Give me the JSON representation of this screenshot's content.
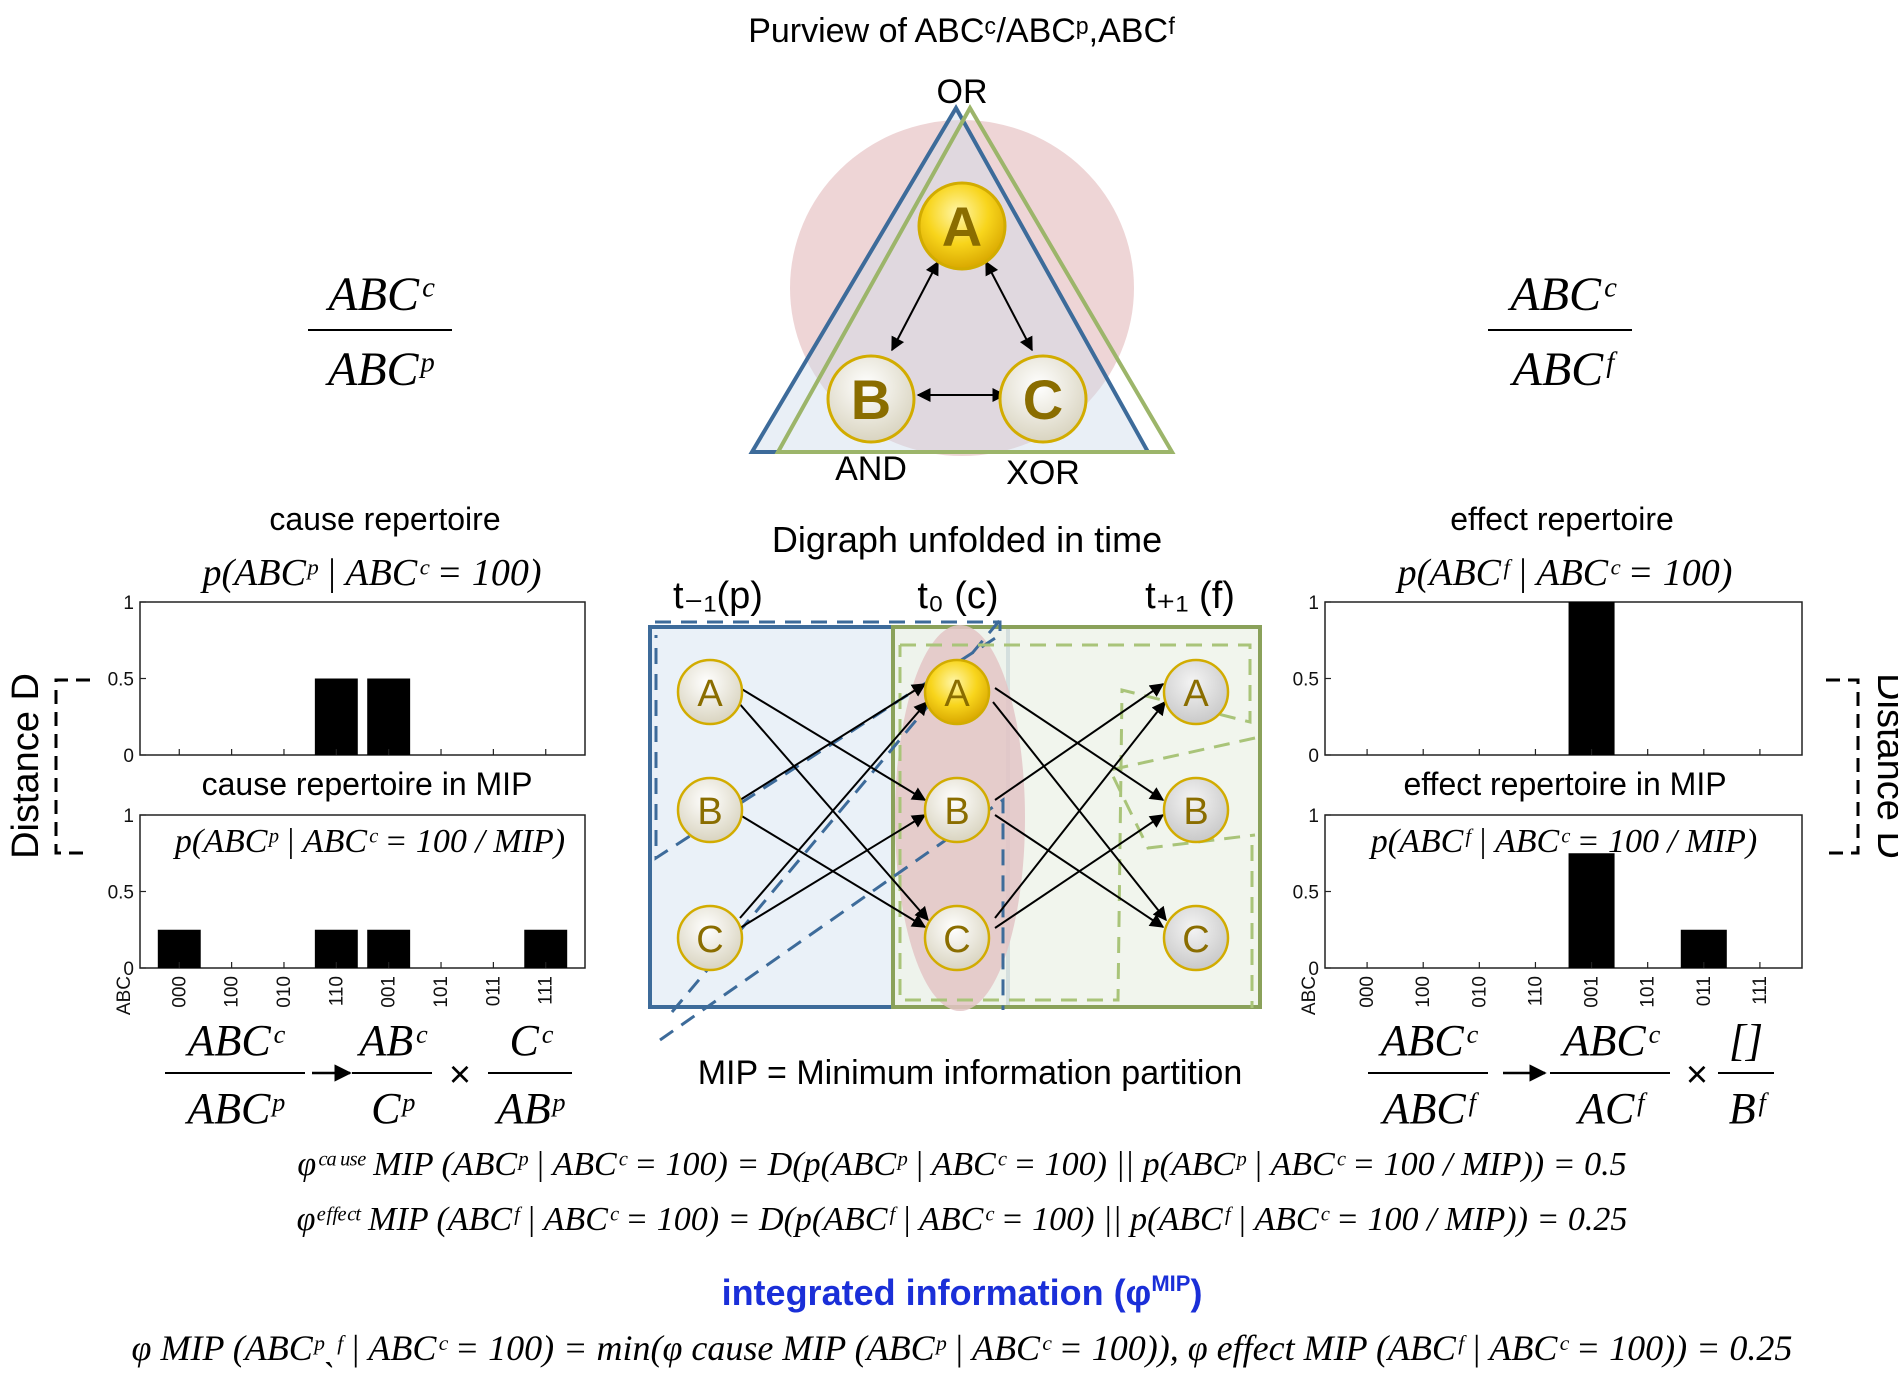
{
  "title": "Purview of ABCᶜ/ABCᵖ,ABCᶠ",
  "triangle": {
    "nodes": [
      {
        "label": "A",
        "gate": "OR"
      },
      {
        "label": "B",
        "gate": "AND"
      },
      {
        "label": "C",
        "gate": "XOR"
      }
    ],
    "colors": {
      "blue": "#3d6b9a",
      "green": "#9cb56a",
      "pink": "#eccfd0",
      "node_a": "#f6d21a",
      "node_other": "#f4f1e4"
    }
  },
  "left": {
    "ratio_top": "ABCᶜ",
    "ratio_bottom": "ABCᵖ",
    "repertoire_title": "cause repertoire",
    "repertoire_formula": "p(ABCᵖ | ABCᶜ = 100)",
    "mip_title": "cause repertoire in MIP",
    "mip_formula": "p(ABCᵖ | ABCᶜ = 100 / MIP)",
    "distance_label": "Distance D",
    "partition": {
      "whole_top": "ABCᶜ",
      "whole_bottom": "ABCᵖ",
      "part1_top": "ABᶜ",
      "part1_bottom": "Cᵖ",
      "part2_top": "Cᶜ",
      "part2_bottom": "ABᵖ"
    }
  },
  "right": {
    "ratio_top": "ABCᶜ",
    "ratio_bottom": "ABCᶠ",
    "repertoire_title": "effect repertoire",
    "repertoire_formula": "p(ABCᶠ | ABCᶜ = 100)",
    "mip_title": "effect repertoire in MIP",
    "mip_formula": "p(ABCᶠ | ABCᶜ = 100 / MIP)",
    "distance_label": "Distance D",
    "partition": {
      "whole_top": "ABCᶜ",
      "whole_bottom": "ABCᶠ",
      "part1_top": "ABCᶜ",
      "part1_bottom": "ACᶠ",
      "part2_top": "[]",
      "part2_bottom": "Bᶠ"
    }
  },
  "center": {
    "title": "Digraph unfolded in time",
    "columns": [
      "t₋₁(p)",
      "t₀ (c)",
      "t₊₁ (f)"
    ],
    "mip_caption": "MIP = Minimum information partition"
  },
  "chart_data": [
    {
      "type": "bar",
      "title": "cause repertoire",
      "categories": [
        "000",
        "100",
        "010",
        "110",
        "001",
        "101",
        "011",
        "111"
      ],
      "values": [
        0,
        0,
        0,
        0.5,
        0.5,
        0,
        0,
        0
      ],
      "xlabel": "ABC",
      "ylim": [
        0,
        1
      ],
      "yticks": [
        "0",
        "0.5",
        "1"
      ]
    },
    {
      "type": "bar",
      "title": "cause repertoire in MIP",
      "categories": [
        "000",
        "100",
        "010",
        "110",
        "001",
        "101",
        "011",
        "111"
      ],
      "values": [
        0.25,
        0,
        0,
        0.25,
        0.25,
        0,
        0,
        0.25
      ],
      "xlabel": "ABC",
      "ylim": [
        0,
        1
      ],
      "yticks": [
        "0",
        "0.5",
        "1"
      ]
    },
    {
      "type": "bar",
      "title": "effect repertoire",
      "categories": [
        "000",
        "100",
        "010",
        "110",
        "001",
        "101",
        "011",
        "111"
      ],
      "values": [
        0,
        0,
        0,
        0,
        1,
        0,
        0,
        0
      ],
      "xlabel": "ABC",
      "ylim": [
        0,
        1
      ],
      "yticks": [
        "0",
        "0.5",
        "1"
      ]
    },
    {
      "type": "bar",
      "title": "effect repertoire in MIP",
      "categories": [
        "000",
        "100",
        "010",
        "110",
        "001",
        "101",
        "011",
        "111"
      ],
      "values": [
        0,
        0,
        0,
        0,
        0.75,
        0,
        0.25,
        0
      ],
      "xlabel": "ABC",
      "ylim": [
        0,
        1
      ],
      "yticks": [
        "0",
        "0.5",
        "1"
      ]
    }
  ],
  "equations": {
    "phi_cause": "φᶜᵃᵘˢᵉ MIP (ABCᵖ | ABCᶜ = 100) = D(p(ABCᵖ | ABCᶜ = 100) || p(ABCᵖ | ABCᶜ = 100 / MIP)) = 0.5",
    "phi_effect": "φᵉᶠᶠᵉᶜᵗ MIP (ABCᶠ | ABCᶜ = 100) = D(p(ABCᶠ | ABCᶜ = 100) || p(ABCᶠ | ABCᶜ = 100 / MIP)) = 0.25",
    "integrated_label": "integrated information (φ",
    "integrated_sup": "MIP",
    "integrated_close": ")",
    "phi_total": "φ MIP (ABCᵖˎᶠ | ABCᶜ = 100) = min(φ cause MIP (ABCᵖ | ABCᶜ = 100)), φ effect MIP (ABCᶠ | ABCᶜ = 100)) = 0.25"
  }
}
